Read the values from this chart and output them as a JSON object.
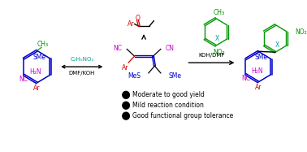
{
  "bg_color": "#ffffff",
  "fig_width": 3.78,
  "fig_height": 1.87,
  "dpi": 100,
  "colors": {
    "red": "#cc0000",
    "green": "#009900",
    "blue": "#0000cc",
    "purple": "#cc00cc",
    "teal": "#009999",
    "black": "#000000"
  },
  "bullet_points": [
    "Moderate to good yield",
    "Mild reaction condition",
    "Good functional group tolerance"
  ],
  "arrow_left_label1": "C₂H₅NO₂",
  "arrow_left_label2": "DMF/KOH",
  "arrow_right_label": "KOH/DMF",
  "font_size_small": 5.5,
  "font_size_bullet": 5.5
}
